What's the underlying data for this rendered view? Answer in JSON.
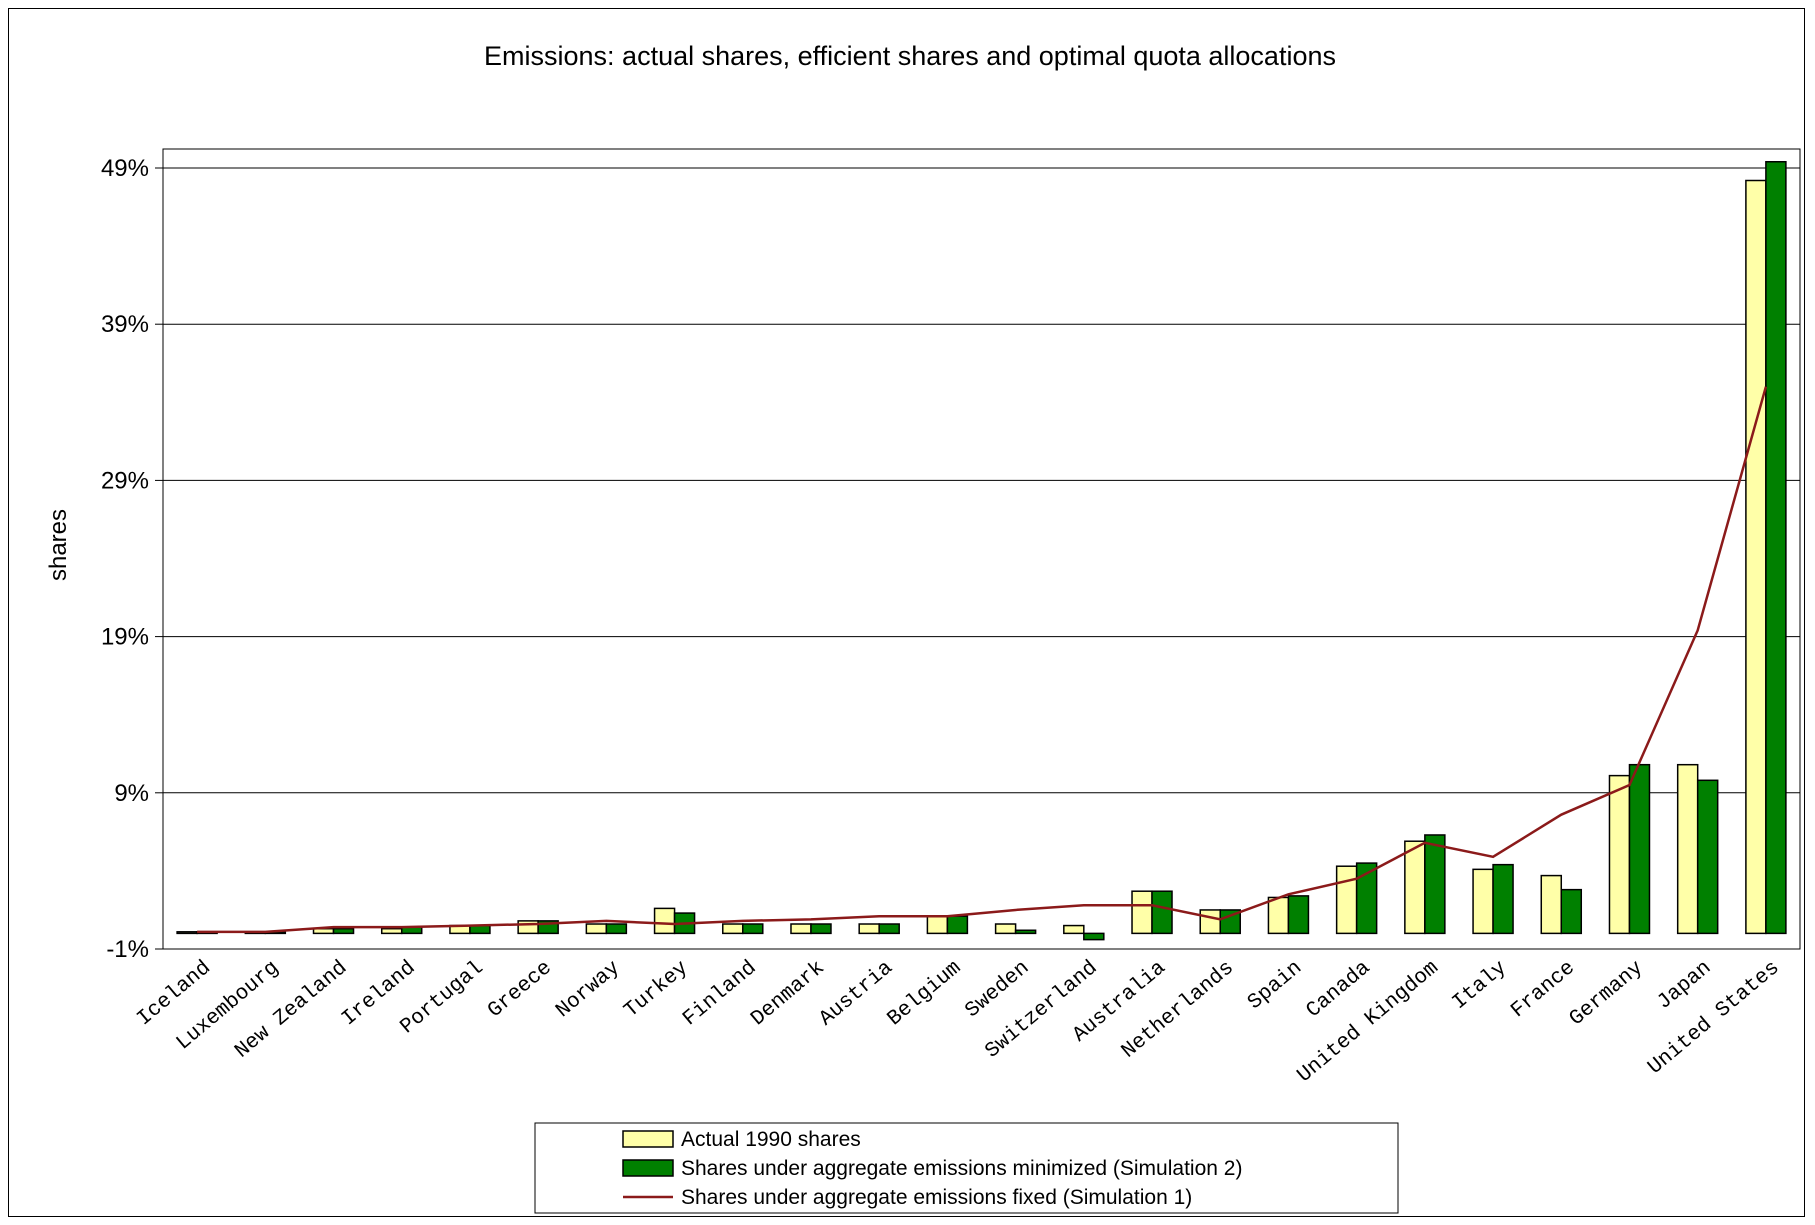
{
  "chart_data": {
    "type": "bar",
    "title": "Emissions: actual shares, efficient shares and optimal quota allocations",
    "ylabel": "shares",
    "xlabel": "",
    "ylim": [
      -1,
      50
    ],
    "yticks": [
      -1,
      9,
      19,
      29,
      39,
      49
    ],
    "ytick_labels": [
      "-1%",
      "9%",
      "19%",
      "29%",
      "39%",
      "49%"
    ],
    "grid": true,
    "legend_position": "bottom-center",
    "categories": [
      "Iceland",
      "Luxembourg",
      "New Zealand",
      "Ireland",
      "Portugal",
      "Greece",
      "Norway",
      "Turkey",
      "Finland",
      "Denmark",
      "Austria",
      "Belgium",
      "Sweden",
      "Switzerland",
      "Australia",
      "Netherlands",
      "Spain",
      "Canada",
      "United Kingdom",
      "Italy",
      "France",
      "Germany",
      "Japan",
      "United States"
    ],
    "series": [
      {
        "name": "Actual 1990 shares",
        "kind": "bar",
        "color": "#FFFFA8",
        "values": [
          0.1,
          0.1,
          0.3,
          0.3,
          0.5,
          0.8,
          0.6,
          1.6,
          0.6,
          0.6,
          0.6,
          1.1,
          0.6,
          0.5,
          2.7,
          1.5,
          2.3,
          4.3,
          5.9,
          4.1,
          3.7,
          10.1,
          10.8,
          48.2
        ]
      },
      {
        "name": "Shares under aggregate emissions minimized  (Simulation 2)",
        "kind": "bar",
        "color": "#008000",
        "values": [
          0.1,
          0.1,
          0.3,
          0.4,
          0.5,
          0.8,
          0.6,
          1.3,
          0.6,
          0.6,
          0.6,
          1.1,
          0.2,
          -0.4,
          2.7,
          1.5,
          2.4,
          4.5,
          6.3,
          4.4,
          2.8,
          10.8,
          9.8,
          49.4
        ]
      },
      {
        "name": "Shares under aggregate emissions fixed (Simulation 1)",
        "kind": "line",
        "color": "#8B1A1A",
        "values": [
          0.1,
          0.1,
          0.4,
          0.4,
          0.5,
          0.6,
          0.8,
          0.6,
          0.8,
          0.9,
          1.1,
          1.1,
          1.5,
          1.8,
          1.8,
          0.9,
          2.5,
          3.5,
          5.8,
          4.9,
          7.6,
          9.5,
          19.4,
          35.0
        ]
      }
    ]
  }
}
